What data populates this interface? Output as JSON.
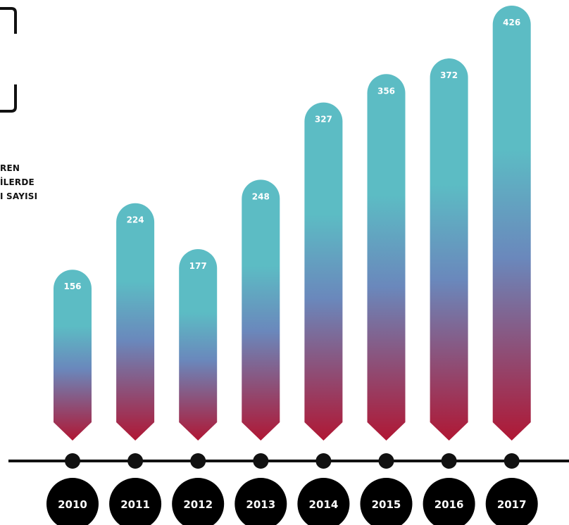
{
  "legend_lines": [
    "REN",
    "İLERDE",
    "I SAYISI"
  ],
  "colors": {
    "bar_top": "#5cbcc4",
    "bar_mid": "#6a88bc",
    "bar_bottom": "#b01734",
    "axis": "#111111",
    "year_circle": "#000000"
  },
  "chart_data": {
    "type": "bar",
    "categories": [
      "2010",
      "2011",
      "2012",
      "2013",
      "2014",
      "2015",
      "2016",
      "2017"
    ],
    "series": [
      {
        "values": [
          156,
          224,
          177,
          248,
          327,
          356,
          372,
          426
        ]
      }
    ],
    "ylim": [
      0,
      426
    ],
    "grid": false,
    "legend": "none"
  }
}
